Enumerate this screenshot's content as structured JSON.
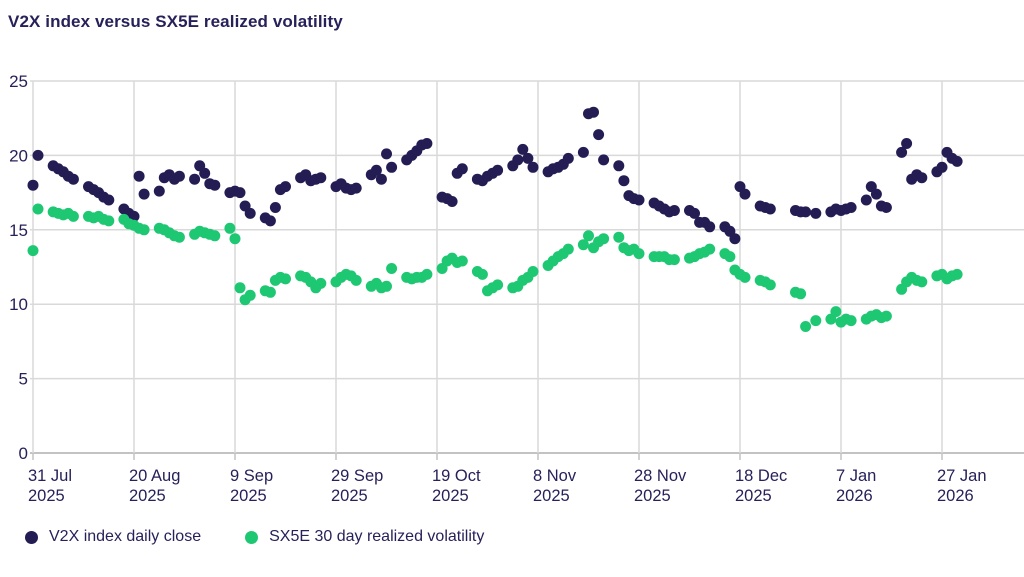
{
  "chart": {
    "title": "V2X index versus SX5E realized volatility"
  },
  "colors": {
    "navy": "#231d54",
    "green": "#1ec873",
    "text": "#27215a",
    "grid": "#d9d9d9",
    "axis": "#c3c3c3"
  },
  "legend": {
    "items": [
      {
        "label": "V2X index daily close",
        "color": "#231d54"
      },
      {
        "label": "SX5E 30 day realized volatility",
        "color": "#1ec873"
      }
    ]
  },
  "chart_data": {
    "type": "scatter",
    "title": "V2X index versus SX5E realized volatility",
    "xlabel": "",
    "ylabel": "",
    "ylim": [
      0,
      25
    ],
    "y_ticks": [
      0,
      5,
      10,
      15,
      20,
      25
    ],
    "x_domain_days": [
      0,
      196
    ],
    "grid": true,
    "legend_position": "bottom",
    "x_ticks": [
      {
        "d": 0,
        "label": "31 Jul",
        "year": "2025"
      },
      {
        "d": 20,
        "label": "20 Aug",
        "year": "2025"
      },
      {
        "d": 40,
        "label": "9 Sep",
        "year": "2025"
      },
      {
        "d": 60,
        "label": "29 Sep",
        "year": "2025"
      },
      {
        "d": 80,
        "label": "19 Oct",
        "year": "2025"
      },
      {
        "d": 100,
        "label": "8 Nov",
        "year": "2025"
      },
      {
        "d": 120,
        "label": "28 Nov",
        "year": "2025"
      },
      {
        "d": 140,
        "label": "18 Dec",
        "year": "2025"
      },
      {
        "d": 160,
        "label": "7 Jan",
        "year": "2026"
      },
      {
        "d": 180,
        "label": "27 Jan",
        "year": "2026"
      }
    ],
    "series": [
      {
        "name": "V2X index daily close",
        "color": "#231d54",
        "points": [
          [
            0,
            18.0
          ],
          [
            1,
            20.0
          ],
          [
            4,
            19.3
          ],
          [
            5,
            19.1
          ],
          [
            6,
            18.9
          ],
          [
            7,
            18.6
          ],
          [
            8,
            18.4
          ],
          [
            11,
            17.9
          ],
          [
            12,
            17.7
          ],
          [
            13,
            17.5
          ],
          [
            14,
            17.2
          ],
          [
            15,
            17.0
          ],
          [
            18,
            16.4
          ],
          [
            19,
            16.1
          ],
          [
            20,
            15.9
          ],
          [
            21,
            18.6
          ],
          [
            22,
            17.4
          ],
          [
            25,
            17.6
          ],
          [
            26,
            18.5
          ],
          [
            27,
            18.7
          ],
          [
            28,
            18.4
          ],
          [
            29,
            18.6
          ],
          [
            32,
            18.4
          ],
          [
            33,
            19.3
          ],
          [
            34,
            18.8
          ],
          [
            35,
            18.1
          ],
          [
            36,
            18.0
          ],
          [
            39,
            17.5
          ],
          [
            40,
            17.6
          ],
          [
            41,
            17.5
          ],
          [
            42,
            16.6
          ],
          [
            43,
            16.1
          ],
          [
            46,
            15.8
          ],
          [
            47,
            15.6
          ],
          [
            48,
            16.5
          ],
          [
            49,
            17.7
          ],
          [
            50,
            17.9
          ],
          [
            53,
            18.5
          ],
          [
            54,
            18.7
          ],
          [
            55,
            18.3
          ],
          [
            56,
            18.4
          ],
          [
            57,
            18.5
          ],
          [
            60,
            17.9
          ],
          [
            61,
            18.1
          ],
          [
            62,
            17.8
          ],
          [
            63,
            17.7
          ],
          [
            64,
            17.8
          ],
          [
            67,
            18.7
          ],
          [
            68,
            19.0
          ],
          [
            69,
            18.4
          ],
          [
            70,
            20.1
          ],
          [
            71,
            19.2
          ],
          [
            74,
            19.7
          ],
          [
            75,
            20.0
          ],
          [
            76,
            20.3
          ],
          [
            77,
            20.7
          ],
          [
            78,
            20.8
          ],
          [
            81,
            17.2
          ],
          [
            82,
            17.1
          ],
          [
            83,
            16.9
          ],
          [
            84,
            18.8
          ],
          [
            85,
            19.1
          ],
          [
            88,
            18.4
          ],
          [
            89,
            18.3
          ],
          [
            90,
            18.6
          ],
          [
            91,
            18.8
          ],
          [
            92,
            19.0
          ],
          [
            95,
            19.3
          ],
          [
            96,
            19.7
          ],
          [
            97,
            20.4
          ],
          [
            98,
            19.8
          ],
          [
            99,
            19.2
          ],
          [
            102,
            18.9
          ],
          [
            103,
            19.1
          ],
          [
            104,
            19.2
          ],
          [
            105,
            19.4
          ],
          [
            106,
            19.8
          ],
          [
            109,
            20.2
          ],
          [
            110,
            22.8
          ],
          [
            111,
            22.9
          ],
          [
            112,
            21.4
          ],
          [
            113,
            19.7
          ],
          [
            116,
            19.3
          ],
          [
            117,
            18.3
          ],
          [
            118,
            17.3
          ],
          [
            119,
            17.1
          ],
          [
            120,
            17.0
          ],
          [
            123,
            16.8
          ],
          [
            124,
            16.6
          ],
          [
            125,
            16.4
          ],
          [
            126,
            16.2
          ],
          [
            127,
            16.3
          ],
          [
            130,
            16.3
          ],
          [
            131,
            16.1
          ],
          [
            132,
            15.5
          ],
          [
            133,
            15.5
          ],
          [
            134,
            15.2
          ],
          [
            137,
            15.2
          ],
          [
            138,
            14.9
          ],
          [
            139,
            14.4
          ],
          [
            140,
            17.9
          ],
          [
            141,
            17.4
          ],
          [
            144,
            16.6
          ],
          [
            145,
            16.5
          ],
          [
            146,
            16.4
          ],
          [
            151,
            16.3
          ],
          [
            152,
            16.2
          ],
          [
            153,
            16.2
          ],
          [
            155,
            16.1
          ],
          [
            158,
            16.2
          ],
          [
            159,
            16.4
          ],
          [
            160,
            16.3
          ],
          [
            161,
            16.4
          ],
          [
            162,
            16.5
          ],
          [
            165,
            17.0
          ],
          [
            166,
            17.9
          ],
          [
            167,
            17.4
          ],
          [
            168,
            16.6
          ],
          [
            169,
            16.5
          ],
          [
            172,
            20.2
          ],
          [
            173,
            20.8
          ],
          [
            174,
            18.4
          ],
          [
            175,
            18.7
          ],
          [
            176,
            18.5
          ],
          [
            179,
            18.9
          ],
          [
            180,
            19.2
          ],
          [
            181,
            20.2
          ],
          [
            182,
            19.8
          ],
          [
            183,
            19.6
          ]
        ]
      },
      {
        "name": "SX5E 30 day realized volatility",
        "color": "#1ec873",
        "points": [
          [
            0,
            13.6
          ],
          [
            1,
            16.4
          ],
          [
            4,
            16.2
          ],
          [
            5,
            16.1
          ],
          [
            6,
            16.0
          ],
          [
            7,
            16.1
          ],
          [
            8,
            15.9
          ],
          [
            11,
            15.9
          ],
          [
            12,
            15.8
          ],
          [
            13,
            15.9
          ],
          [
            14,
            15.7
          ],
          [
            15,
            15.6
          ],
          [
            18,
            15.7
          ],
          [
            19,
            15.4
          ],
          [
            20,
            15.3
          ],
          [
            21,
            15.1
          ],
          [
            22,
            15.0
          ],
          [
            25,
            15.1
          ],
          [
            26,
            15.0
          ],
          [
            27,
            14.8
          ],
          [
            28,
            14.6
          ],
          [
            29,
            14.5
          ],
          [
            32,
            14.7
          ],
          [
            33,
            14.9
          ],
          [
            34,
            14.8
          ],
          [
            35,
            14.7
          ],
          [
            36,
            14.6
          ],
          [
            39,
            15.1
          ],
          [
            40,
            14.4
          ],
          [
            41,
            11.1
          ],
          [
            42,
            10.3
          ],
          [
            43,
            10.6
          ],
          [
            46,
            10.9
          ],
          [
            47,
            10.8
          ],
          [
            48,
            11.6
          ],
          [
            49,
            11.8
          ],
          [
            50,
            11.7
          ],
          [
            53,
            11.9
          ],
          [
            54,
            11.8
          ],
          [
            55,
            11.5
          ],
          [
            56,
            11.1
          ],
          [
            57,
            11.4
          ],
          [
            60,
            11.5
          ],
          [
            61,
            11.8
          ],
          [
            62,
            12.0
          ],
          [
            63,
            11.9
          ],
          [
            64,
            11.6
          ],
          [
            67,
            11.2
          ],
          [
            68,
            11.4
          ],
          [
            69,
            11.1
          ],
          [
            70,
            11.2
          ],
          [
            71,
            12.4
          ],
          [
            74,
            11.8
          ],
          [
            75,
            11.7
          ],
          [
            76,
            11.8
          ],
          [
            77,
            11.8
          ],
          [
            78,
            12.0
          ],
          [
            81,
            12.4
          ],
          [
            82,
            12.9
          ],
          [
            83,
            13.1
          ],
          [
            84,
            12.8
          ],
          [
            85,
            12.9
          ],
          [
            88,
            12.2
          ],
          [
            89,
            12.0
          ],
          [
            90,
            10.9
          ],
          [
            91,
            11.1
          ],
          [
            92,
            11.3
          ],
          [
            95,
            11.1
          ],
          [
            96,
            11.2
          ],
          [
            97,
            11.6
          ],
          [
            98,
            11.8
          ],
          [
            99,
            12.2
          ],
          [
            102,
            12.6
          ],
          [
            103,
            12.9
          ],
          [
            104,
            13.2
          ],
          [
            105,
            13.4
          ],
          [
            106,
            13.7
          ],
          [
            109,
            14.0
          ],
          [
            110,
            14.6
          ],
          [
            111,
            13.8
          ],
          [
            112,
            14.2
          ],
          [
            113,
            14.4
          ],
          [
            116,
            14.5
          ],
          [
            117,
            13.8
          ],
          [
            118,
            13.6
          ],
          [
            119,
            13.7
          ],
          [
            120,
            13.4
          ],
          [
            123,
            13.2
          ],
          [
            124,
            13.2
          ],
          [
            125,
            13.2
          ],
          [
            126,
            13.0
          ],
          [
            127,
            13.0
          ],
          [
            130,
            13.1
          ],
          [
            131,
            13.2
          ],
          [
            132,
            13.4
          ],
          [
            133,
            13.5
          ],
          [
            134,
            13.7
          ],
          [
            137,
            13.4
          ],
          [
            138,
            13.2
          ],
          [
            139,
            12.3
          ],
          [
            140,
            12.0
          ],
          [
            141,
            11.8
          ],
          [
            144,
            11.6
          ],
          [
            145,
            11.5
          ],
          [
            146,
            11.3
          ],
          [
            151,
            10.8
          ],
          [
            152,
            10.7
          ],
          [
            153,
            8.5
          ],
          [
            155,
            8.9
          ],
          [
            158,
            9.0
          ],
          [
            159,
            9.5
          ],
          [
            160,
            8.8
          ],
          [
            161,
            9.0
          ],
          [
            162,
            8.9
          ],
          [
            165,
            9.0
          ],
          [
            166,
            9.2
          ],
          [
            167,
            9.3
          ],
          [
            168,
            9.1
          ],
          [
            169,
            9.2
          ],
          [
            172,
            11.0
          ],
          [
            173,
            11.5
          ],
          [
            174,
            11.8
          ],
          [
            175,
            11.6
          ],
          [
            176,
            11.5
          ],
          [
            179,
            11.9
          ],
          [
            180,
            12.0
          ],
          [
            181,
            11.7
          ],
          [
            182,
            11.9
          ],
          [
            183,
            12.0
          ]
        ]
      }
    ]
  }
}
